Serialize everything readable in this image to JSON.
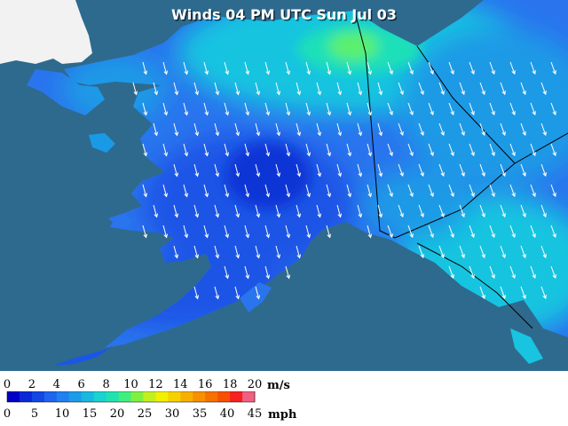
{
  "title": "Winds 04 PM UTC Sun Jul 03",
  "colors": {
    "ocean": "#2e6a8e",
    "land_outside": "#f2f2f2",
    "shade_1": "#0a36d6",
    "shade_2": "#1b55e6",
    "shade_3": "#2a74ee",
    "shade_4": "#1a9ae6",
    "shade_5": "#18c4e0",
    "shade_6": "#1fe0b8",
    "shade_7": "#5bf06e",
    "boundary": "#000000",
    "arrow": "#ffffff"
  },
  "legend": {
    "ms_unit": "m/s",
    "mph_unit": "mph",
    "ms_ticks": [
      "0",
      "2",
      "4",
      "6",
      "8",
      "10",
      "12",
      "14",
      "16",
      "18",
      "20"
    ],
    "mph_ticks": [
      "0",
      "5",
      "10",
      "15",
      "20",
      "25",
      "30",
      "35",
      "40",
      "45"
    ],
    "swatches": [
      "#0000c8",
      "#0a28d8",
      "#1446e4",
      "#1e64ee",
      "#2080f0",
      "#1c9ce8",
      "#18b8e0",
      "#1ad2d0",
      "#20e2b0",
      "#40ee80",
      "#80f040",
      "#c0f020",
      "#f0f000",
      "#f8d000",
      "#f8b000",
      "#f89000",
      "#f87000",
      "#f85000",
      "#f82020",
      "#f06080"
    ]
  }
}
